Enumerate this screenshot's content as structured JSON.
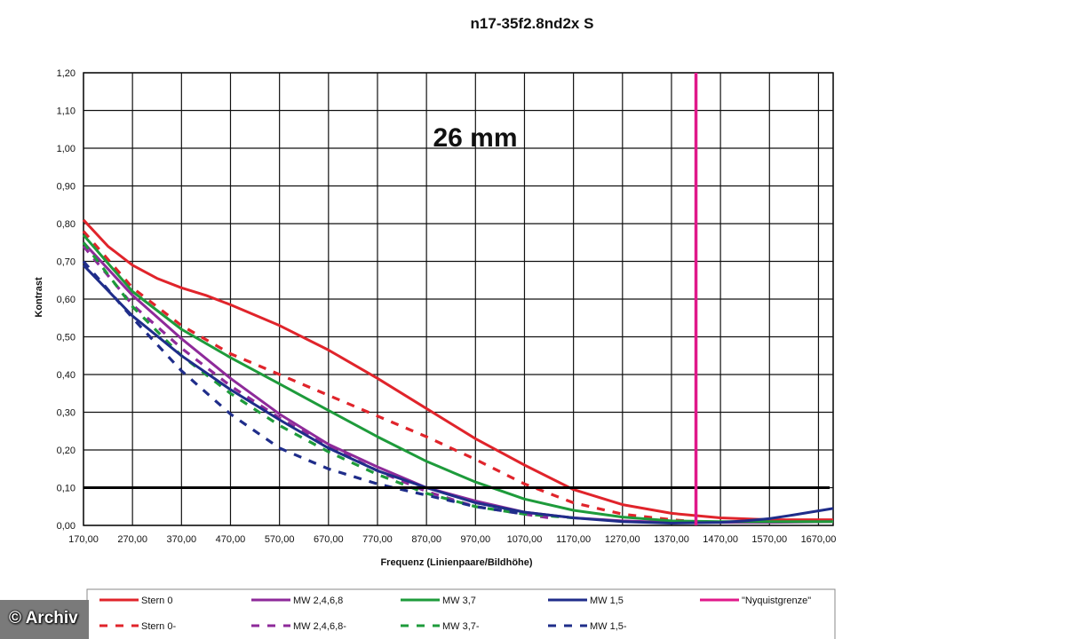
{
  "chart_data": {
    "type": "line",
    "title": "n17-35f2.8nd2x S",
    "annotation": "26 mm",
    "xlabel": "Frequenz (Linienpaare/Bildhöhe)",
    "ylabel": "Kontrast",
    "xlim": [
      170,
      1700
    ],
    "ylim": [
      0,
      1.2
    ],
    "x_ticks": [
      "170,00",
      "270,00",
      "370,00",
      "470,00",
      "570,00",
      "670,00",
      "770,00",
      "870,00",
      "970,00",
      "1070,00",
      "1170,00",
      "1270,00",
      "1370,00",
      "1470,00",
      "1570,00",
      "1670,00"
    ],
    "y_ticks": [
      "0,00",
      "0,10",
      "0,20",
      "0,30",
      "0,40",
      "0,50",
      "0,60",
      "0,70",
      "0,80",
      "0,90",
      "1,00",
      "1,10",
      "1,20"
    ],
    "grid": true,
    "legend_position": "bottom",
    "threshold_line": {
      "y": 0.1,
      "color": "#000000"
    },
    "nyquist_line": {
      "x": 1420,
      "color": "#e0198a",
      "name": "\"Nyquistgrenze\""
    },
    "series": [
      {
        "name": "Stern 0",
        "color": "#e0242b",
        "dashed": false,
        "points": [
          [
            170,
            0.81
          ],
          [
            220,
            0.74
          ],
          [
            270,
            0.69
          ],
          [
            320,
            0.655
          ],
          [
            370,
            0.63
          ],
          [
            420,
            0.61
          ],
          [
            470,
            0.585
          ],
          [
            570,
            0.53
          ],
          [
            670,
            0.465
          ],
          [
            770,
            0.39
          ],
          [
            870,
            0.31
          ],
          [
            970,
            0.23
          ],
          [
            1070,
            0.16
          ],
          [
            1170,
            0.095
          ],
          [
            1270,
            0.055
          ],
          [
            1370,
            0.032
          ],
          [
            1470,
            0.02
          ],
          [
            1570,
            0.015
          ],
          [
            1700,
            0.015
          ]
        ]
      },
      {
        "name": "Stern 0-",
        "color": "#e0242b",
        "dashed": true,
        "points": [
          [
            170,
            0.78
          ],
          [
            270,
            0.63
          ],
          [
            370,
            0.53
          ],
          [
            470,
            0.455
          ],
          [
            570,
            0.4
          ],
          [
            670,
            0.345
          ],
          [
            770,
            0.29
          ],
          [
            870,
            0.235
          ],
          [
            970,
            0.175
          ],
          [
            1070,
            0.11
          ],
          [
            1170,
            0.06
          ],
          [
            1270,
            0.03
          ],
          [
            1370,
            0.015
          ],
          [
            1420,
            0.01
          ]
        ]
      },
      {
        "name": "MW 2,4,6,8",
        "color": "#8e2a9a",
        "dashed": false,
        "points": [
          [
            170,
            0.75
          ],
          [
            270,
            0.61
          ],
          [
            370,
            0.495
          ],
          [
            470,
            0.39
          ],
          [
            570,
            0.295
          ],
          [
            670,
            0.215
          ],
          [
            770,
            0.155
          ],
          [
            870,
            0.1
          ],
          [
            970,
            0.065
          ],
          [
            1070,
            0.035
          ],
          [
            1170,
            0.02
          ],
          [
            1270,
            0.012
          ],
          [
            1370,
            0.008
          ],
          [
            1470,
            0.008
          ],
          [
            1570,
            0.008
          ],
          [
            1700,
            0.01
          ]
        ]
      },
      {
        "name": "MW 2,4,6,8-",
        "color": "#8e2a9a",
        "dashed": true,
        "points": [
          [
            170,
            0.74
          ],
          [
            270,
            0.585
          ],
          [
            370,
            0.47
          ],
          [
            470,
            0.37
          ],
          [
            570,
            0.285
          ],
          [
            670,
            0.21
          ],
          [
            770,
            0.145
          ],
          [
            870,
            0.09
          ],
          [
            970,
            0.05
          ],
          [
            1070,
            0.03
          ],
          [
            1120,
            0.02
          ]
        ]
      },
      {
        "name": "MW 3,7",
        "color": "#1e9b3b",
        "dashed": false,
        "points": [
          [
            170,
            0.77
          ],
          [
            270,
            0.62
          ],
          [
            370,
            0.52
          ],
          [
            470,
            0.445
          ],
          [
            570,
            0.375
          ],
          [
            670,
            0.305
          ],
          [
            770,
            0.235
          ],
          [
            870,
            0.17
          ],
          [
            970,
            0.115
          ],
          [
            1070,
            0.07
          ],
          [
            1170,
            0.04
          ],
          [
            1270,
            0.022
          ],
          [
            1370,
            0.012
          ],
          [
            1470,
            0.01
          ],
          [
            1570,
            0.01
          ],
          [
            1700,
            0.01
          ]
        ]
      },
      {
        "name": "MW 3,7-",
        "color": "#1e9b3b",
        "dashed": true,
        "points": [
          [
            170,
            0.75
          ],
          [
            270,
            0.58
          ],
          [
            370,
            0.45
          ],
          [
            470,
            0.35
          ],
          [
            570,
            0.265
          ],
          [
            670,
            0.195
          ],
          [
            770,
            0.135
          ],
          [
            870,
            0.085
          ],
          [
            970,
            0.05
          ],
          [
            1070,
            0.03
          ],
          [
            1170,
            0.02
          ]
        ]
      },
      {
        "name": "MW 1,5",
        "color": "#1f2d8a",
        "dashed": false,
        "points": [
          [
            170,
            0.69
          ],
          [
            270,
            0.555
          ],
          [
            370,
            0.45
          ],
          [
            470,
            0.36
          ],
          [
            570,
            0.28
          ],
          [
            670,
            0.205
          ],
          [
            770,
            0.145
          ],
          [
            870,
            0.1
          ],
          [
            970,
            0.06
          ],
          [
            1070,
            0.035
          ],
          [
            1170,
            0.02
          ],
          [
            1270,
            0.01
          ],
          [
            1370,
            0.006
          ],
          [
            1470,
            0.008
          ],
          [
            1520,
            0.012
          ],
          [
            1570,
            0.018
          ],
          [
            1620,
            0.028
          ],
          [
            1700,
            0.045
          ]
        ]
      },
      {
        "name": "MW 1,5-",
        "color": "#1f2d8a",
        "dashed": true,
        "points": [
          [
            170,
            0.7
          ],
          [
            270,
            0.55
          ],
          [
            370,
            0.41
          ],
          [
            470,
            0.295
          ],
          [
            570,
            0.205
          ],
          [
            670,
            0.15
          ],
          [
            770,
            0.11
          ],
          [
            870,
            0.08
          ],
          [
            970,
            0.05
          ],
          [
            1070,
            0.03
          ]
        ]
      }
    ],
    "legend": [
      [
        "Stern 0",
        "MW 2,4,6,8",
        "MW 3,7",
        "MW 1,5",
        "\"Nyquistgrenze\""
      ],
      [
        "Stern 0-",
        "MW 2,4,6,8-",
        "MW 3,7-",
        "MW 1,5-"
      ]
    ]
  },
  "watermark": "© Archiv"
}
